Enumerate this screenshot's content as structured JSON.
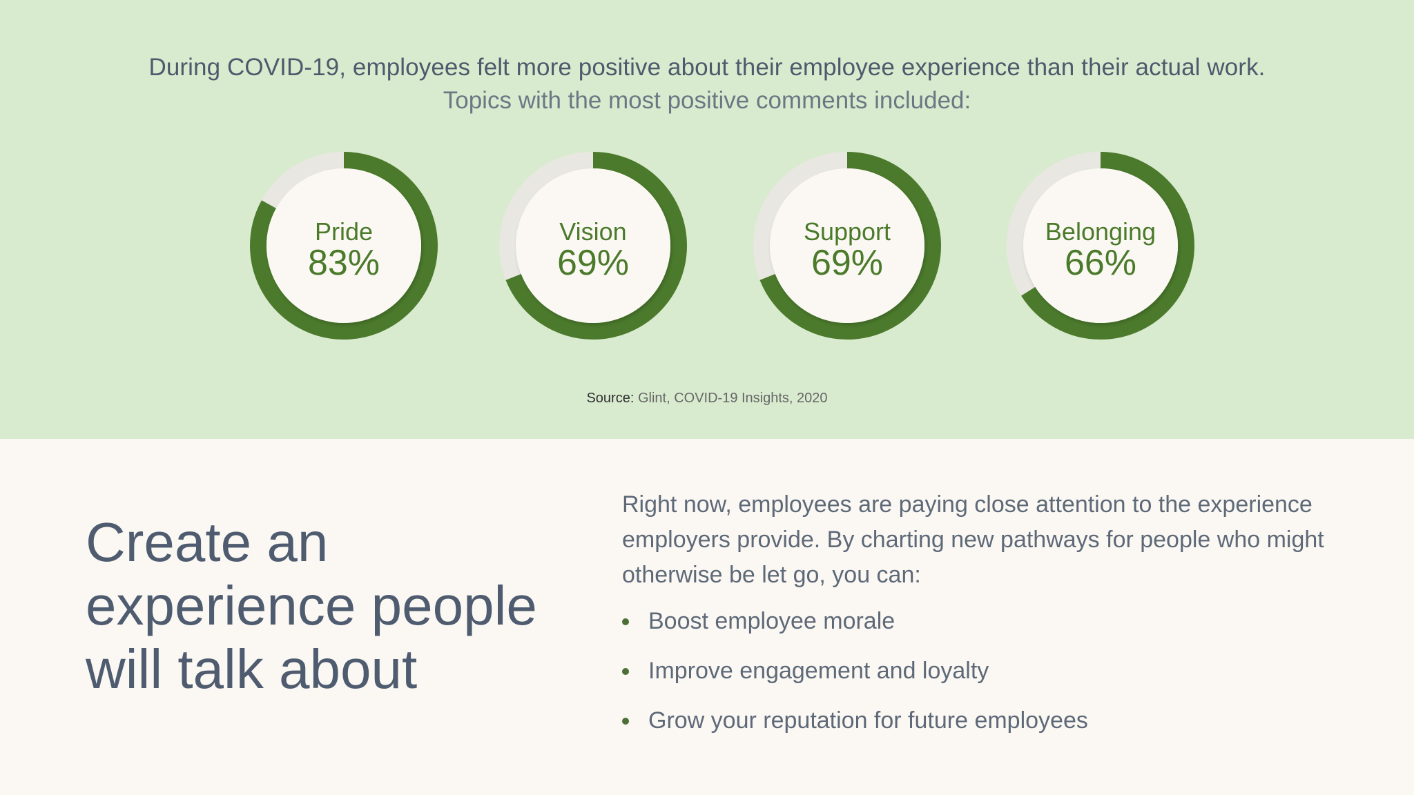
{
  "header": {
    "headline": "During COVID-19, employees felt more positive about their employee experience than their actual work.",
    "subhead": "Topics with the most positive comments included:"
  },
  "colors": {
    "band_background": "#d9ebcf",
    "page_background": "#fbf8f3",
    "ring_fill": "#4b7a2c",
    "ring_track": "#e9e7e1",
    "donut_center": "#fbf8f3",
    "label_color": "#4a7a2a",
    "text_primary": "#4f5c70"
  },
  "chart_data": {
    "type": "pie",
    "variant": "donut",
    "title": "",
    "items": [
      {
        "label": "Pride",
        "value": 83,
        "display": "83%"
      },
      {
        "label": "Vision",
        "value": 69,
        "display": "69%"
      },
      {
        "label": "Support",
        "value": 69,
        "display": "69%"
      },
      {
        "label": "Belonging",
        "value": 66,
        "display": "66%"
      }
    ],
    "max": 100,
    "legend": "none"
  },
  "source": {
    "label": "Source:",
    "text": "Glint, COVID-19 Insights, 2020"
  },
  "lower": {
    "title_lines": [
      "Create an",
      "experience people",
      "will talk about"
    ],
    "paragraph": "Right now, employees are paying close attention to the experience employers provide. By charting new pathways for people who might otherwise be let go, you can:",
    "bullets": [
      "Boost employee morale",
      "Improve engagement and loyalty",
      "Grow your reputation for future employees"
    ]
  }
}
